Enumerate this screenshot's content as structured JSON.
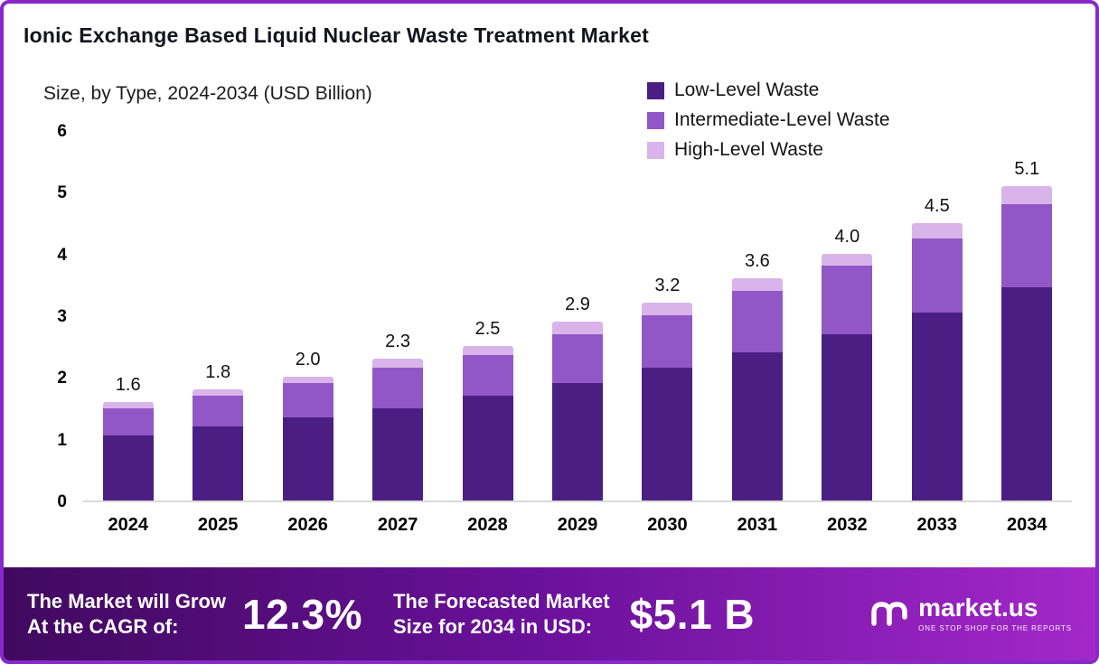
{
  "header": {
    "title": "Ionic Exchange Based Liquid Nuclear Waste Treatment Market",
    "subtitle": "Size, by Type, 2024-2034 (USD Billion)"
  },
  "chart_data": {
    "type": "bar",
    "stacked": true,
    "title": "Ionic Exchange Based Liquid Nuclear Waste Treatment Market Size, by Type, 2024-2034 (USD Billion)",
    "categories": [
      "2024",
      "2025",
      "2026",
      "2027",
      "2028",
      "2029",
      "2030",
      "2031",
      "2032",
      "2033",
      "2034"
    ],
    "series": [
      {
        "name": "Low-Level Waste",
        "color": "#4B1E84",
        "values": [
          1.05,
          1.2,
          1.35,
          1.5,
          1.7,
          1.9,
          2.15,
          2.4,
          2.7,
          3.05,
          3.45
        ]
      },
      {
        "name": "Intermediate-Level Waste",
        "color": "#9257C6",
        "values": [
          0.45,
          0.5,
          0.55,
          0.65,
          0.65,
          0.8,
          0.85,
          1.0,
          1.1,
          1.2,
          1.35
        ]
      },
      {
        "name": "High-Level Waste",
        "color": "#D8B4EA",
        "values": [
          0.1,
          0.1,
          0.1,
          0.15,
          0.15,
          0.2,
          0.2,
          0.2,
          0.2,
          0.25,
          0.3
        ]
      }
    ],
    "totals": [
      1.6,
      1.8,
      2.0,
      2.3,
      2.5,
      2.9,
      3.2,
      3.6,
      4.0,
      4.5,
      5.1
    ],
    "ylim": [
      0,
      6
    ],
    "yticks": [
      0,
      1,
      2,
      3,
      4,
      5,
      6
    ],
    "xlabel": "",
    "ylabel": "USD Billion",
    "grid": false,
    "legend_position": "top-right"
  },
  "banner": {
    "growth_label": "The Market will Grow\nAt the CAGR of:",
    "cagr_value": "12.3%",
    "forecast_label": "The Forecasted Market\nSize for 2034 in USD:",
    "forecast_value": "$5.1 B",
    "logo_text": "market.us",
    "logo_tagline": "ONE STOP SHOP FOR THE REPORTS"
  },
  "meta": {
    "accent_border": "#8729c9",
    "banner_gradient_start": "#40095e",
    "banner_gradient_end": "#a328c9"
  }
}
